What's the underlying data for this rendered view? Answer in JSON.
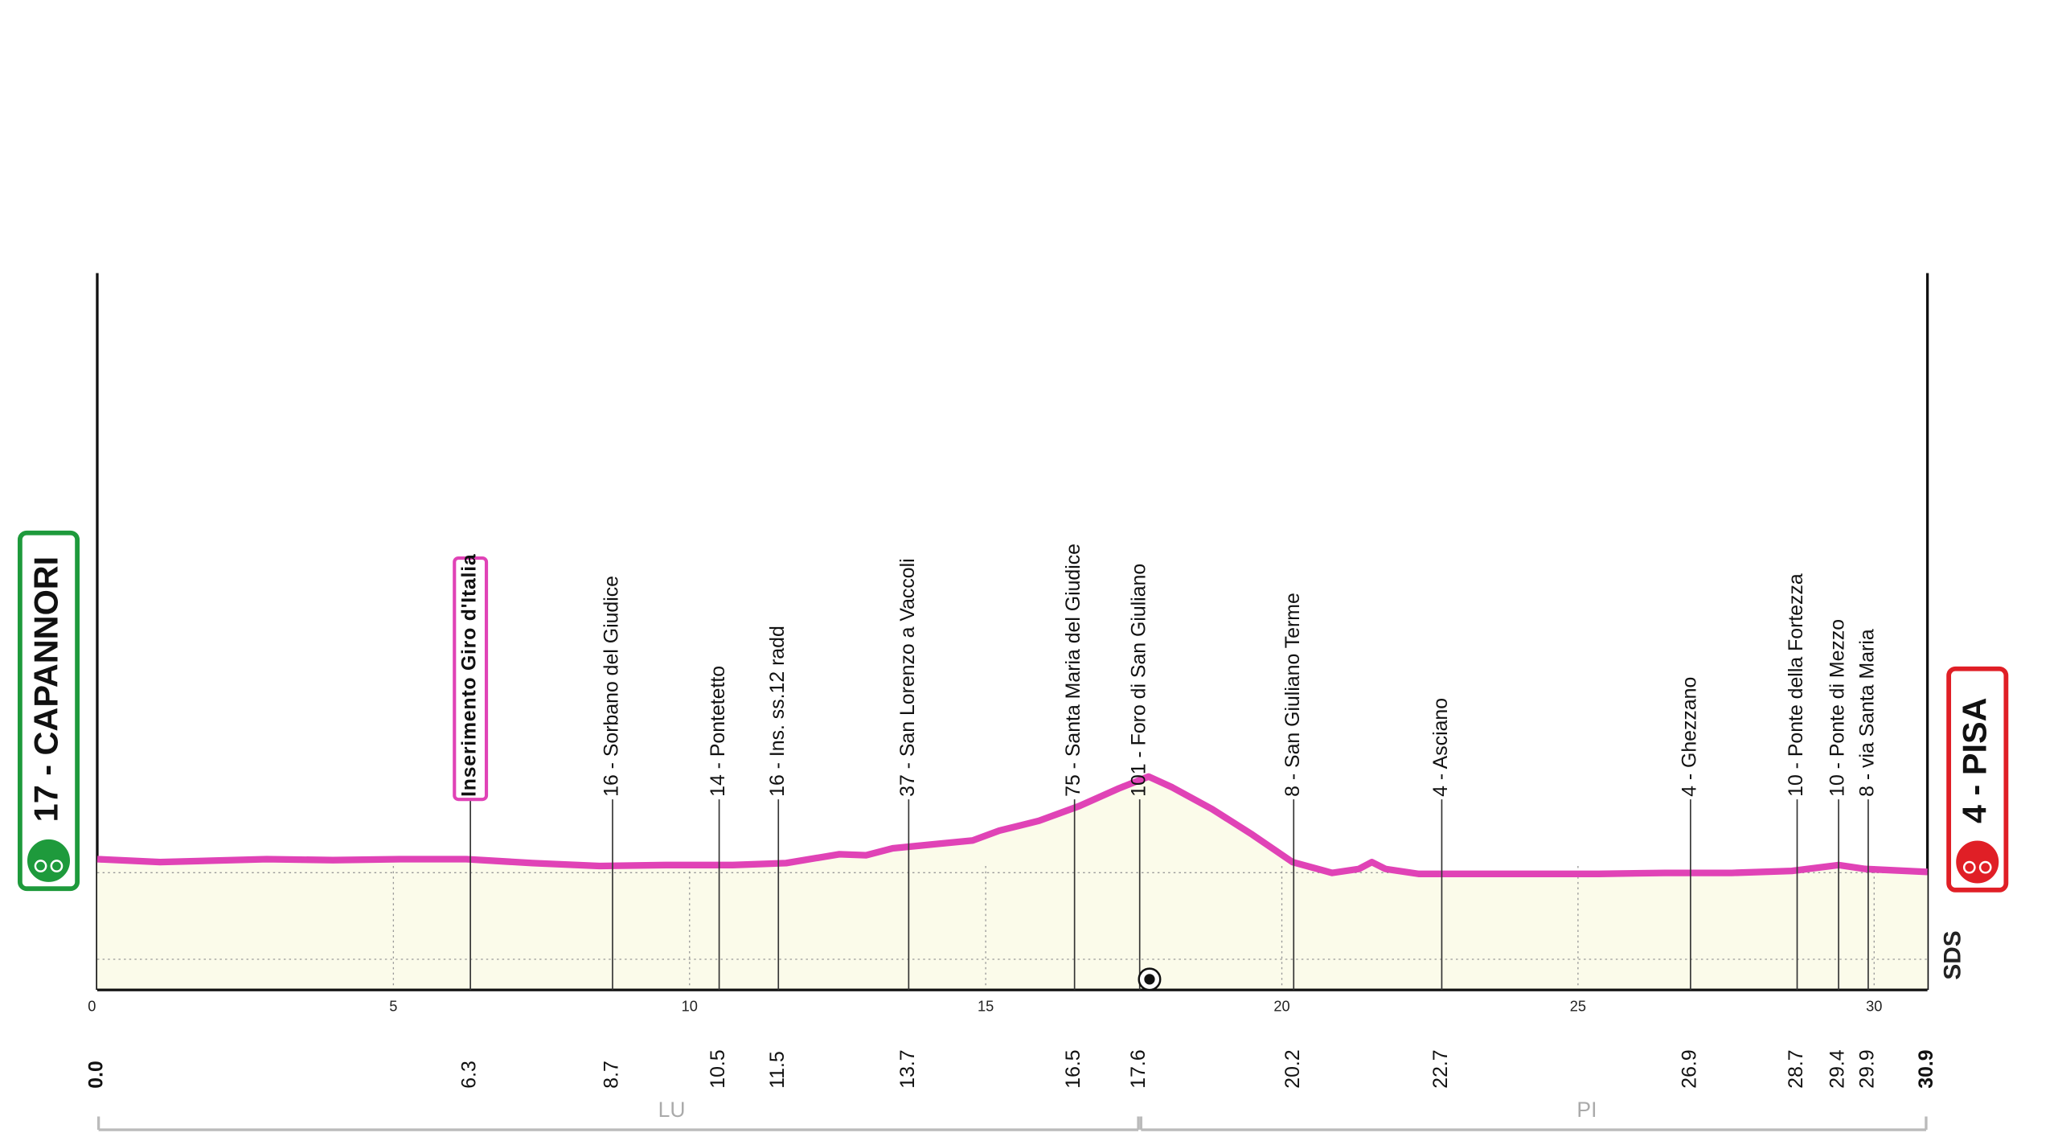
{
  "chart_data": {
    "type": "area",
    "x": [
      0,
      1.06,
      2.86,
      3.98,
      5.11,
      6.23,
      7.35,
      8.48,
      9.6,
      10.73,
      11.63,
      12.53,
      12.98,
      13.43,
      14.1,
      14.78,
      15.23,
      15.9,
      16.58,
      17.25,
      17.75,
      18.15,
      18.82,
      19.5,
      20.18,
      20.85,
      21.3,
      21.52,
      21.75,
      22.31,
      23.1,
      24.22,
      25.35,
      26.47,
      27.6,
      28.61,
      29.4,
      29.85,
      30.9
    ],
    "values": [
      17,
      14,
      17,
      16,
      17,
      17,
      13,
      10,
      11,
      11,
      13,
      22,
      21,
      28,
      32,
      36,
      46,
      56,
      71,
      89,
      101,
      90,
      68,
      42,
      14,
      3,
      7,
      14,
      7,
      2,
      2,
      2,
      2,
      3,
      3,
      5,
      11,
      7,
      4
    ],
    "color": "#e043b6",
    "area_color": "#fbfbea",
    "xlim": [
      0,
      30.9
    ],
    "xticks": [
      0,
      5,
      10,
      15,
      20,
      25,
      30
    ],
    "ylim": [
      -116,
      613
    ],
    "start": {
      "km": 0,
      "km_label": "0.0",
      "label": "17 - CAPANNORI",
      "color": "#1e9a3c"
    },
    "finish": {
      "km": 30.9,
      "km_label": "30.9",
      "label": "4 - PISA",
      "color": "#e01f26"
    },
    "waypoints": [
      {
        "km": 6.3,
        "label": "Inserimento Giro d'Italia",
        "highlight": true
      },
      {
        "km": 8.7,
        "label": "16 - Sorbano del Giudice"
      },
      {
        "km": 10.5,
        "label": "14 - Pontetetto"
      },
      {
        "km": 11.5,
        "label": "16 - Ins. ss.12 radd"
      },
      {
        "km": 13.7,
        "label": "37 - San Lorenzo a Vaccoli"
      },
      {
        "km": 16.5,
        "label": "75 - Santa Maria del Giudice"
      },
      {
        "km": 17.6,
        "label": "101 - Foro di San Giuliano"
      },
      {
        "km": 20.2,
        "label": "8 - San Giuliano Terme"
      },
      {
        "km": 22.7,
        "label": "4 - Asciano"
      },
      {
        "km": 26.9,
        "label": "4 - Ghezzano"
      },
      {
        "km": 28.7,
        "label": "10 - Ponte della Fortezza"
      },
      {
        "km": 29.4,
        "label": "10 - Ponte di Mezzo"
      },
      {
        "km": 29.9,
        "label": "8 - via Santa Maria"
      }
    ],
    "regions": [
      {
        "name": "LU",
        "from": 0,
        "to": 17.6
      },
      {
        "name": "PI",
        "from": 17.6,
        "to": 30.9
      }
    ],
    "logo": "SDS"
  }
}
